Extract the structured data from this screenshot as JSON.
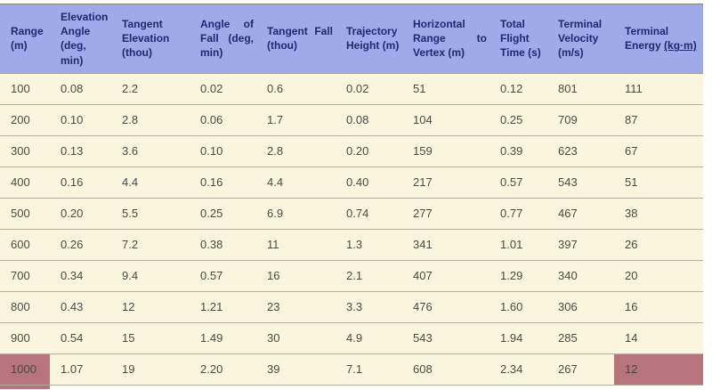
{
  "table": {
    "columns": [
      {
        "id": "range",
        "label": "Range (m)"
      },
      {
        "id": "elevation-angle",
        "label": "Elevation Angle (deg, min)"
      },
      {
        "id": "tangent-elevation",
        "label": "Tangent Elevation (thou)"
      },
      {
        "id": "angle-of-fall",
        "label": "Angle of Fall (deg, min)"
      },
      {
        "id": "tangent-fall",
        "label": "Tangent Fall (thou)"
      },
      {
        "id": "trajectory-height",
        "label": "Trajectory Height (m)"
      },
      {
        "id": "horizontal-range-to-vertex",
        "label": "Horizontal Range to Vertex (m)"
      },
      {
        "id": "total-flight-time",
        "label": "Total Flight Time (s)"
      },
      {
        "id": "terminal-velocity",
        "label": "Terminal Velocity (m/s)"
      },
      {
        "id": "terminal-energy",
        "label": "Terminal Energy",
        "unit": "(kg·m)",
        "unit_underlined": true
      }
    ],
    "rows": [
      {
        "cells": [
          "100",
          "0.08",
          "2.2",
          "0.02",
          "0.6",
          "0.02",
          "51",
          "0.12",
          "801",
          "111"
        ]
      },
      {
        "cells": [
          "200",
          "0.10",
          "2.8",
          "0.06",
          "1.7",
          "0.08",
          "104",
          "0.25",
          "709",
          "87"
        ]
      },
      {
        "cells": [
          "300",
          "0.13",
          "3.6",
          "0.10",
          "2.8",
          "0.20",
          "159",
          "0.39",
          "623",
          "67"
        ]
      },
      {
        "cells": [
          "400",
          "0.16",
          "4.4",
          "0.16",
          "4.4",
          "0.40",
          "217",
          "0.57",
          "543",
          "51"
        ]
      },
      {
        "cells": [
          "500",
          "0.20",
          "5.5",
          "0.25",
          "6.9",
          "0.74",
          "277",
          "0.77",
          "467",
          "38"
        ]
      },
      {
        "cells": [
          "600",
          "0.26",
          "7.2",
          "0.38",
          "11",
          "1.3",
          "341",
          "1.01",
          "397",
          "26"
        ]
      },
      {
        "cells": [
          "700",
          "0.34",
          "9.4",
          "0.57",
          "16",
          "2.1",
          "407",
          "1.29",
          "340",
          "20"
        ]
      },
      {
        "cells": [
          "800",
          "0.43",
          "12",
          "1.21",
          "23",
          "3.3",
          "476",
          "1.60",
          "306",
          "16"
        ]
      },
      {
        "cells": [
          "900",
          "0.54",
          "15",
          "1.49",
          "30",
          "4.9",
          "543",
          "1.94",
          "285",
          "14"
        ]
      },
      {
        "cells": [
          "1000",
          "1.07",
          "19",
          "2.20",
          "39",
          "7.1",
          "608",
          "2.34",
          "267",
          "12"
        ]
      }
    ],
    "highlights": [
      {
        "row": 9,
        "col": 0
      },
      {
        "row": 9,
        "col": 9
      }
    ],
    "highlight_color": "#b7747c"
  },
  "colors": {
    "header_background": "#a0aae8",
    "header_text": "#1c2a70",
    "row_background": "#faf6de",
    "body_text": "#4a4a42",
    "row_separator": "#b5b09f",
    "top_border": "#85857b",
    "highlight": "#b7747c",
    "page_background": "#ffffff"
  }
}
